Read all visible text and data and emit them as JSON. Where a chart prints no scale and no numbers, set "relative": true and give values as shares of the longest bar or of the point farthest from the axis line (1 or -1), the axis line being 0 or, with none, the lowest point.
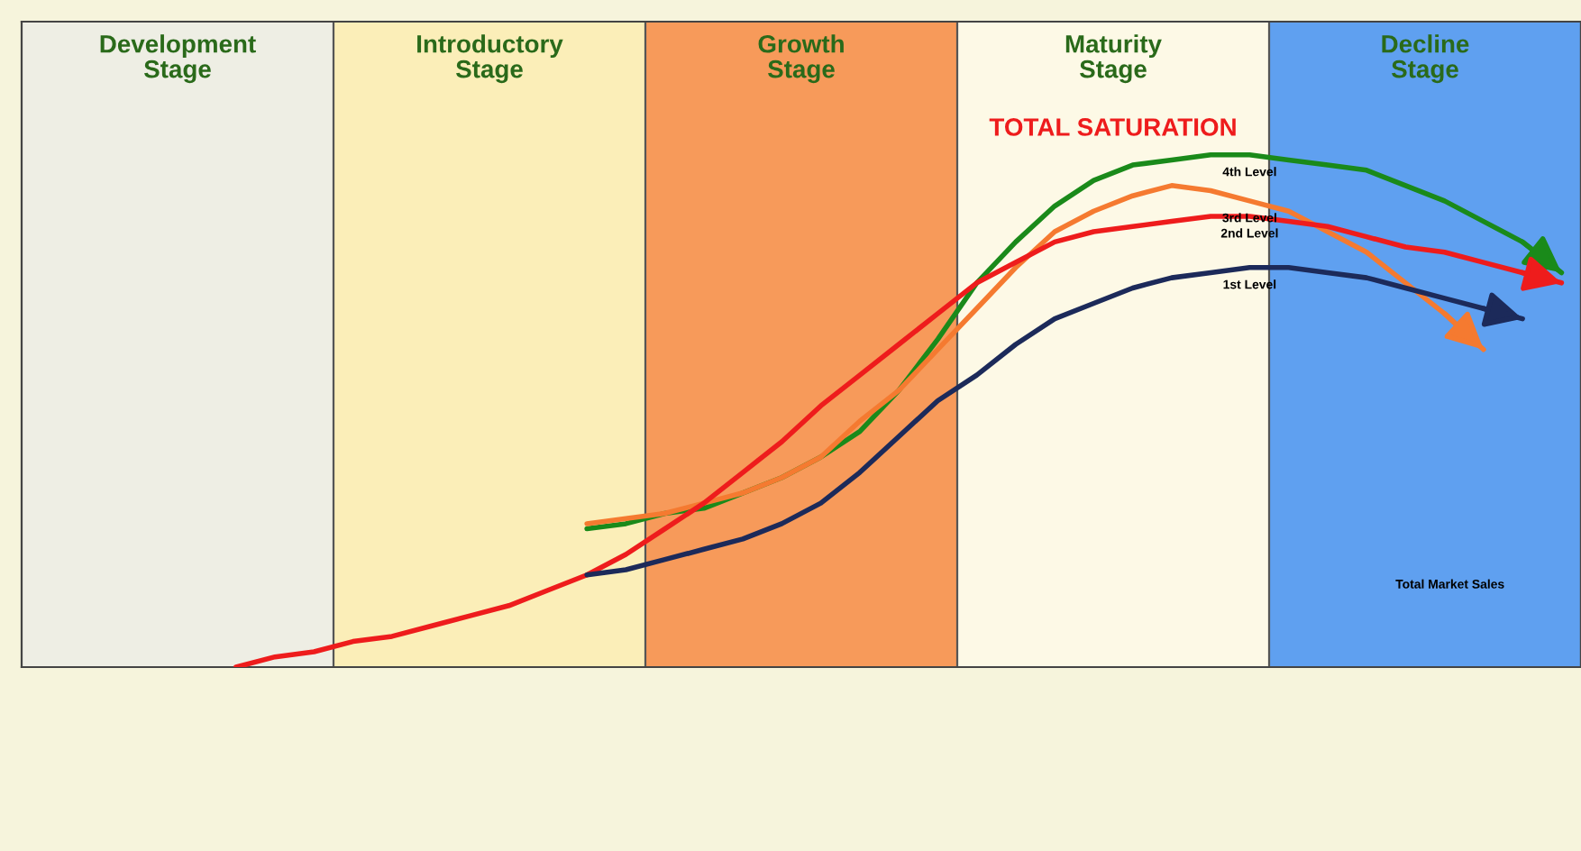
{
  "chart_data": {
    "type": "line",
    "relative": true,
    "categories": [
      null,
      null,
      null,
      null,
      null,
      null,
      null,
      null,
      null,
      null,
      null,
      null,
      null,
      null,
      null,
      null,
      null,
      null,
      null,
      null,
      null,
      null,
      null,
      null,
      null,
      null,
      null,
      null,
      null,
      null,
      null,
      null,
      null,
      null,
      null,
      null,
      null,
      null,
      null,
      null
    ],
    "series": [
      {
        "name": "4th Level",
        "color": "#1a8a1a",
        "values": [
          null,
          null,
          null,
          null,
          null,
          null,
          null,
          null,
          null,
          null,
          null,
          null,
          null,
          null,
          0.27,
          0.28,
          0.3,
          0.31,
          0.34,
          0.37,
          0.41,
          0.46,
          0.54,
          0.64,
          0.75,
          0.83,
          0.9,
          0.95,
          0.98,
          0.99,
          1.0,
          1.0,
          0.99,
          0.98,
          0.97,
          0.94,
          0.91,
          0.87,
          0.83,
          0.77
        ]
      },
      {
        "name": "3rd Level",
        "color": "#f57a30",
        "values": [
          null,
          null,
          null,
          null,
          null,
          null,
          null,
          null,
          null,
          null,
          null,
          null,
          null,
          null,
          0.28,
          0.29,
          0.3,
          0.32,
          0.34,
          0.37,
          0.41,
          0.48,
          0.54,
          0.62,
          0.7,
          0.78,
          0.85,
          0.89,
          0.92,
          0.94,
          0.93,
          0.91,
          0.89,
          0.85,
          0.81,
          0.75,
          0.69,
          0.62,
          null,
          null
        ]
      },
      {
        "name": "2nd Level",
        "color": "#ee1c1c",
        "values": [
          null,
          null,
          null,
          null,
          null,
          0.0,
          0.02,
          0.03,
          0.05,
          0.06,
          0.08,
          0.1,
          0.12,
          0.15,
          0.18,
          0.22,
          0.27,
          0.32,
          0.38,
          0.44,
          0.51,
          0.57,
          0.63,
          0.69,
          0.75,
          0.79,
          0.83,
          0.85,
          0.86,
          0.87,
          0.88,
          0.88,
          0.87,
          0.86,
          0.84,
          0.82,
          0.81,
          0.79,
          0.77,
          0.75
        ]
      },
      {
        "name": "1st Level",
        "color": "#1c2a5a",
        "values": [
          null,
          null,
          null,
          null,
          null,
          null,
          null,
          null,
          null,
          null,
          null,
          null,
          null,
          null,
          0.18,
          0.19,
          0.21,
          0.23,
          0.25,
          0.28,
          0.32,
          0.38,
          0.45,
          0.52,
          0.57,
          0.63,
          0.68,
          0.71,
          0.74,
          0.76,
          0.77,
          0.78,
          0.78,
          0.77,
          0.76,
          0.74,
          0.72,
          0.7,
          0.68,
          null
        ]
      }
    ],
    "annotations": [
      "Development\nStage",
      "Introductory\nStage",
      "Growth\nStage",
      "Maturity\nStage",
      "Decline\nStage",
      "TOTAL SATURATION",
      "Total Market Sales"
    ],
    "grid": false,
    "legend": false
  }
}
